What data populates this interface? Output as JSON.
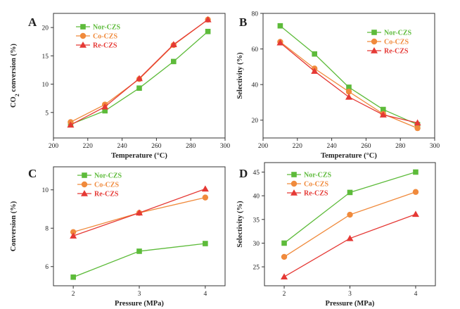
{
  "chart_data": [
    {
      "panel": "A",
      "type": "line",
      "xlabel": "Temperature (°C)",
      "ylabel": "CO2 conversion (%)",
      "ylabel_main": "CO",
      "ylabel_sub": "2",
      "ylabel_rest": " conversion (%)",
      "xlim": [
        200,
        300
      ],
      "ylim": [
        0.5,
        22.5
      ],
      "xticks": [
        200,
        220,
        240,
        260,
        280,
        300
      ],
      "yticks": [
        5,
        10,
        15,
        20
      ],
      "x": [
        210,
        230,
        250,
        270,
        290
      ],
      "legend_position": "top-left",
      "series": [
        {
          "name": "Nor-CZS",
          "color": "#5dbb3a",
          "marker": "square",
          "values": [
            2.9,
            5.3,
            9.3,
            14.0,
            19.3
          ]
        },
        {
          "name": "Co-CZS",
          "color": "#f08a3c",
          "marker": "circle",
          "values": [
            3.3,
            6.4,
            10.9,
            16.9,
            21.4
          ]
        },
        {
          "name": "Re-CZS",
          "color": "#e53935",
          "marker": "triangle",
          "values": [
            2.8,
            6.0,
            11.0,
            17.0,
            21.4
          ]
        }
      ]
    },
    {
      "panel": "B",
      "type": "line",
      "xlabel": "Temperature (°C)",
      "ylabel": "Selectivity (%)",
      "xlim": [
        200,
        300
      ],
      "ylim": [
        10,
        80
      ],
      "xticks": [
        200,
        220,
        240,
        260,
        280,
        300
      ],
      "yticks": [
        20,
        40,
        60,
        80
      ],
      "x": [
        210,
        230,
        250,
        270,
        290
      ],
      "legend_position": "top-right",
      "series": [
        {
          "name": "Nor-CZS",
          "color": "#5dbb3a",
          "marker": "square",
          "values": [
            73.0,
            57.2,
            38.5,
            26.0,
            17.5
          ]
        },
        {
          "name": "Co-CZS",
          "color": "#f08a3c",
          "marker": "circle",
          "values": [
            64.0,
            49.0,
            36.0,
            23.5,
            15.5
          ]
        },
        {
          "name": "Re-CZS",
          "color": "#e53935",
          "marker": "triangle",
          "values": [
            63.5,
            47.5,
            33.0,
            23.0,
            18.5
          ]
        }
      ]
    },
    {
      "panel": "C",
      "type": "line",
      "xlabel": "Pressure (MPa)",
      "ylabel": "Conversion (%)",
      "xlim": [
        1.7,
        4.3
      ],
      "ylim": [
        5.0,
        11.2
      ],
      "xticks": [
        2,
        3,
        4
      ],
      "yticks": [
        6,
        8,
        10
      ],
      "x": [
        2,
        3,
        4
      ],
      "legend_position": "top-left",
      "series": [
        {
          "name": "Nor-CZS",
          "color": "#5dbb3a",
          "marker": "square",
          "values": [
            5.45,
            6.8,
            7.2
          ]
        },
        {
          "name": "Co-CZS",
          "color": "#f08a3c",
          "marker": "circle",
          "values": [
            7.8,
            8.8,
            9.6
          ]
        },
        {
          "name": "Re-CZS",
          "color": "#e53935",
          "marker": "triangle",
          "values": [
            7.6,
            8.8,
            10.05
          ]
        }
      ]
    },
    {
      "panel": "D",
      "type": "line",
      "xlabel": "Pressure (MPa)",
      "ylabel": "Selectivity (%)",
      "xlim": [
        1.7,
        4.3
      ],
      "ylim": [
        21,
        47
      ],
      "xticks": [
        2,
        3,
        4
      ],
      "yticks": [
        25,
        30,
        35,
        40,
        45
      ],
      "x": [
        2,
        3,
        4
      ],
      "legend_position": "top-left",
      "series": [
        {
          "name": "Nor-CZS",
          "color": "#5dbb3a",
          "marker": "square",
          "values": [
            30.0,
            40.7,
            45.0
          ]
        },
        {
          "name": "Co-CZS",
          "color": "#f08a3c",
          "marker": "circle",
          "values": [
            27.1,
            36.0,
            40.8
          ]
        },
        {
          "name": "Re-CZS",
          "color": "#e53935",
          "marker": "triangle",
          "values": [
            22.9,
            31.0,
            36.1
          ]
        }
      ]
    }
  ]
}
